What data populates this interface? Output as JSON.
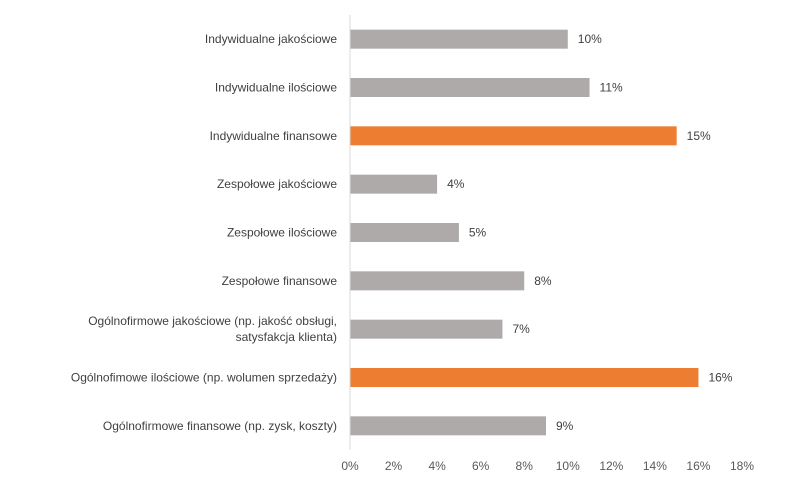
{
  "chart_data": {
    "type": "bar",
    "orientation": "horizontal",
    "categories": [
      [
        "Indywidualne jakościowe"
      ],
      [
        "Indywidualne ilościowe"
      ],
      [
        "Indywidualne finansowe"
      ],
      [
        "Zespołowe jakościowe"
      ],
      [
        "Zespołowe ilościowe"
      ],
      [
        "Zespołowe finansowe"
      ],
      [
        "Ogólnofirmowe jakościowe (np. jakość obsługi,",
        "satysfakcja klienta)"
      ],
      [
        "Ogólnofimowe ilościowe (np. wolumen sprzedaży)"
      ],
      [
        "Ogólnofirmowe finansowe (np. zysk, koszty)"
      ]
    ],
    "values": [
      10,
      11,
      15,
      4,
      5,
      8,
      7,
      16,
      9
    ],
    "value_labels": [
      "10%",
      "11%",
      "15%",
      "4%",
      "5%",
      "8%",
      "7%",
      "16%",
      "9%"
    ],
    "highlighted": [
      false,
      false,
      true,
      false,
      false,
      false,
      false,
      true,
      false
    ],
    "xlim": [
      0,
      18
    ],
    "x_ticks": [
      "0%",
      "2%",
      "4%",
      "6%",
      "8%",
      "10%",
      "12%",
      "14%",
      "16%",
      "18%"
    ],
    "grid": false,
    "colors": {
      "default": "#aeaaaa",
      "highlight": "#ed7d31",
      "axis": "#d9d9d9"
    }
  }
}
